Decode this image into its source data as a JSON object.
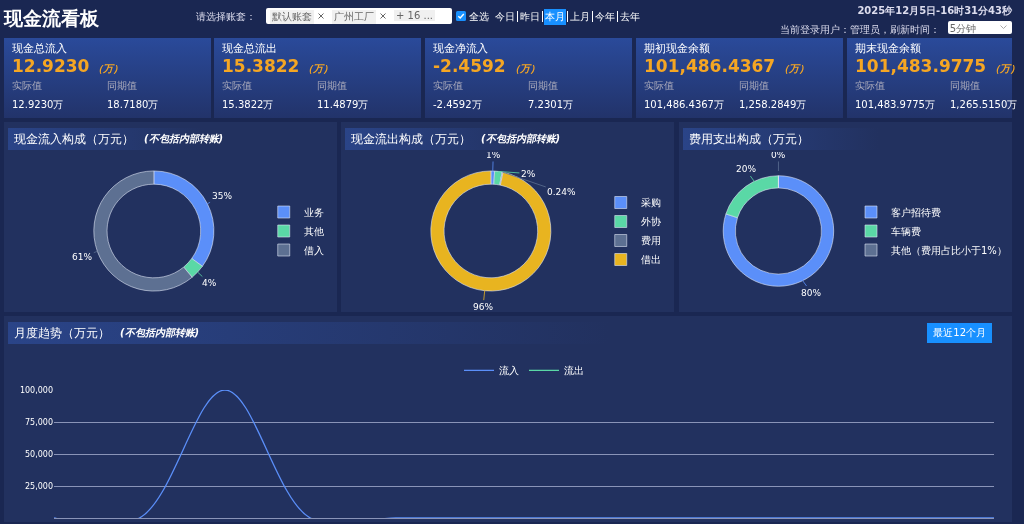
{
  "chart_data": [
    {
      "type": "other",
      "title": "现金流看板",
      "subtitle": "2025年12月5日-16时31分43秒",
      "annotations": [
        "请选择账套：",
        "默认账套",
        "广州工厂",
        "+ 16 ...",
        "全选",
        "今日",
        "昨日",
        "本月",
        "上月",
        "今年",
        "去年",
        "当前登录用户：管理员，刷新时间：",
        "5分钟"
      ]
    },
    {
      "type": "other",
      "title": "现金总流入",
      "annotations": [
        "12.9230",
        "（万）",
        "实际值",
        "同期值",
        "12.9230万",
        "18.7180万"
      ]
    },
    {
      "type": "other",
      "title": "现金总流出",
      "annotations": [
        "15.3822",
        "（万）",
        "实际值",
        "同期值",
        "15.3822万",
        "11.4879万"
      ]
    },
    {
      "type": "other",
      "title": "现金净流入",
      "annotations": [
        "-2.4592",
        "（万）",
        "实际值",
        "同期值",
        "-2.4592万",
        "7.2301万"
      ]
    },
    {
      "type": "other",
      "title": "期初现金余额",
      "annotations": [
        "101,486.4367",
        "（万）",
        "实际值",
        "同期值",
        "101,486.4367万",
        "1,258.2849万"
      ]
    },
    {
      "type": "other",
      "title": "期末现金余额",
      "annotations": [
        "101,483.9775",
        "（万）",
        "实际值",
        "同期值",
        "101,483.9775万",
        "1,265.5150万"
      ]
    },
    {
      "type": "donut",
      "title": "现金流入构成（万元）",
      "subtitle": "(不包括内部转账)",
      "categories": [
        "业务",
        "其他",
        "借入"
      ],
      "values": [
        35,
        4,
        61
      ],
      "value_labels": [
        "35%",
        "4%",
        "61%"
      ],
      "colors": [
        "#5b8ff9",
        "#5ad8a6",
        "#5d7092"
      ],
      "legend": "right"
    },
    {
      "type": "donut",
      "title": "现金流出构成（万元）",
      "subtitle": "(不包括内部转账)",
      "categories": [
        "采购",
        "外协",
        "费用",
        "借出"
      ],
      "values": [
        1,
        2,
        0.24,
        96
      ],
      "value_labels": [
        "1%",
        "2%",
        "0.24%",
        "96%"
      ],
      "colors": [
        "#5b8ff9",
        "#5ad8a6",
        "#5d7092",
        "#e8b420"
      ],
      "legend": "right"
    },
    {
      "type": "donut",
      "title": "费用支出构成（万元）",
      "categories": [
        "客户招待费",
        "车辆费",
        "其他（费用占比小于1%）"
      ],
      "values": [
        80,
        20,
        0
      ],
      "value_labels": [
        "80%",
        "20%",
        "0%"
      ],
      "colors": [
        "#5b8ff9",
        "#5ad8a6",
        "#5d7092"
      ],
      "legend": "right"
    },
    {
      "type": "line",
      "title": "月度趋势（万元）",
      "subtitle": "(不包括内部转账)",
      "annotations": [
        "最近12个月"
      ],
      "categories": [
        null,
        null,
        null,
        null,
        null,
        null,
        null,
        null,
        null,
        null,
        null,
        null
      ],
      "series": [
        {
          "name": "流入",
          "color": "#5b8ff9",
          "values": [
            0,
            0,
            100000,
            0,
            0,
            0,
            0,
            0,
            0,
            0,
            0,
            0
          ]
        },
        {
          "name": "流出",
          "color": "#5ad8a6",
          "values": [
            null,
            null,
            null,
            null,
            null,
            null,
            null,
            null,
            null,
            null,
            null,
            null
          ]
        }
      ],
      "ylim": [
        0,
        100000
      ],
      "yticks": [
        {
          "value": 25000,
          "label": "25,000"
        },
        {
          "value": 50000,
          "label": "50,000"
        },
        {
          "value": 75000,
          "label": "75,000"
        },
        {
          "value": 100000,
          "label": "100,000"
        }
      ],
      "grid": "y",
      "legend": "top",
      "tick_labels": "y",
      "line_style": "solid"
    }
  ]
}
